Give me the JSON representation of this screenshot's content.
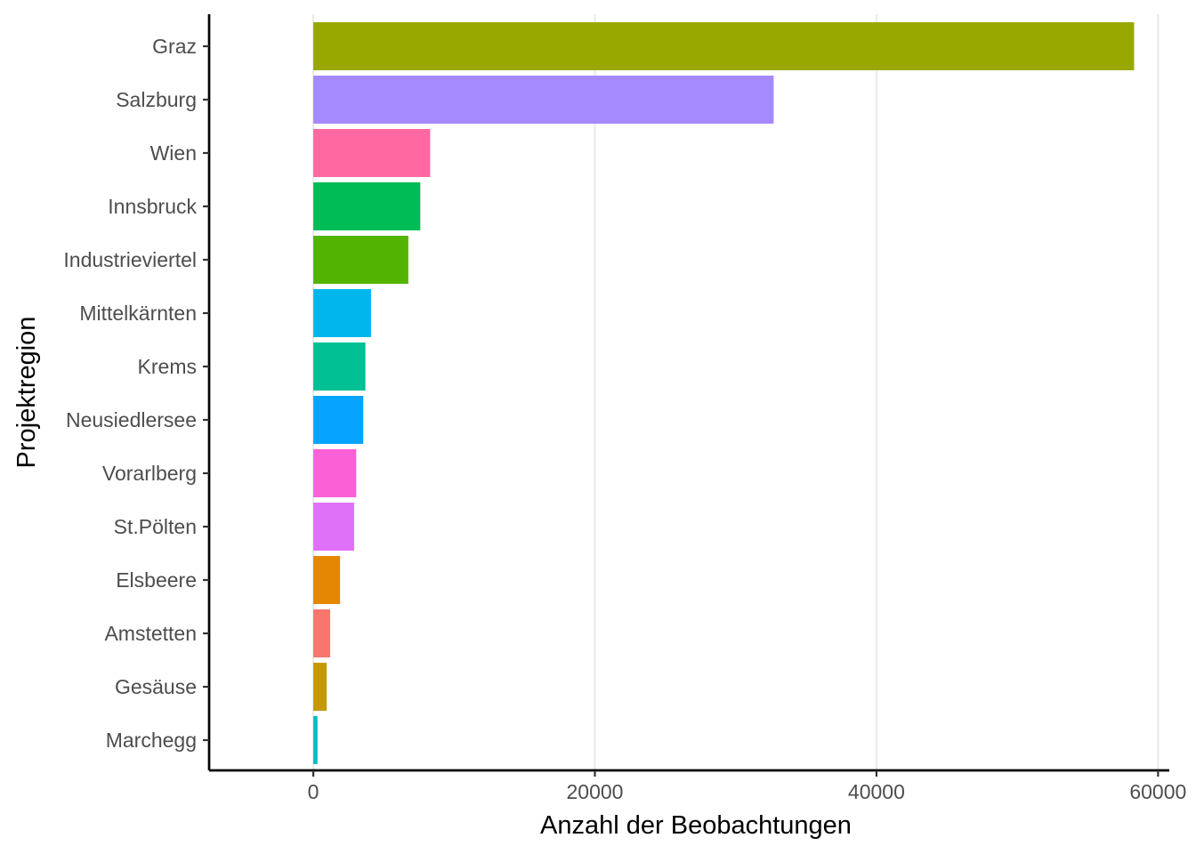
{
  "chart_data": {
    "type": "bar",
    "orientation": "horizontal",
    "xlabel": "Anzahl der Beobachtungen",
    "ylabel": "Projektregion",
    "xlim": [
      -7400,
      60800
    ],
    "xticks": [
      0,
      20000,
      40000,
      60000
    ],
    "xtick_labels": [
      "0",
      "20000",
      "40000",
      "60000"
    ],
    "grid": "vertical major",
    "legend": "none",
    "categories": [
      "Graz",
      "Salzburg",
      "Wien",
      "Innsbruck",
      "Industrieviertel",
      "Mittelkärnten",
      "Krems",
      "Neusiedlersee",
      "Vorarlberg",
      "St.Pölten",
      "Elsbeere",
      "Amstetten",
      "Gesäuse",
      "Marchegg"
    ],
    "values": [
      58300,
      32700,
      8300,
      7600,
      6750,
      4100,
      3700,
      3550,
      3050,
      2900,
      1900,
      1200,
      950,
      300
    ],
    "colors": [
      "#99a800",
      "#a58aff",
      "#ff68a1",
      "#00bc56",
      "#53b400",
      "#00b6eb",
      "#00c094",
      "#06a4ff",
      "#fb61d7",
      "#df70f8",
      "#e58700",
      "#f8766d",
      "#c49a00",
      "#00bfc4"
    ]
  }
}
